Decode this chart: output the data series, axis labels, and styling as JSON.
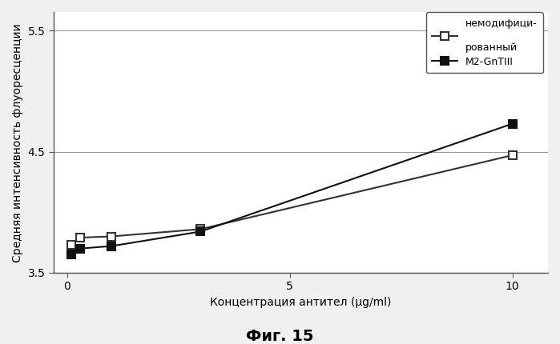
{
  "title": "Фиг. 15",
  "xlabel": "Концентрация антител (µg/ml)",
  "ylabel": "Средняя интенсивность флуоресценции",
  "xlim": [
    -0.3,
    10.8
  ],
  "ylim": [
    3.5,
    5.65
  ],
  "xticks": [
    0,
    5,
    10
  ],
  "yticks": [
    3.5,
    4.5,
    5.5
  ],
  "series1_label_line1": "немодифици-",
  "series1_label_line2": "рованный",
  "series2_label": "M2-GnTIII",
  "series1_x": [
    0.1,
    0.3,
    1.0,
    3.0,
    10.0
  ],
  "series1_y": [
    3.73,
    3.79,
    3.8,
    3.86,
    4.47
  ],
  "series2_x": [
    0.1,
    0.3,
    1.0,
    3.0,
    10.0
  ],
  "series2_y": [
    3.65,
    3.7,
    3.72,
    3.84,
    4.73
  ],
  "series1_color": "#333333",
  "series2_color": "#111111",
  "bg_color": "#f0f0f0",
  "plot_bg_color": "#ffffff",
  "grid_color": "#999999",
  "font_size": 10,
  "title_font_size": 14
}
